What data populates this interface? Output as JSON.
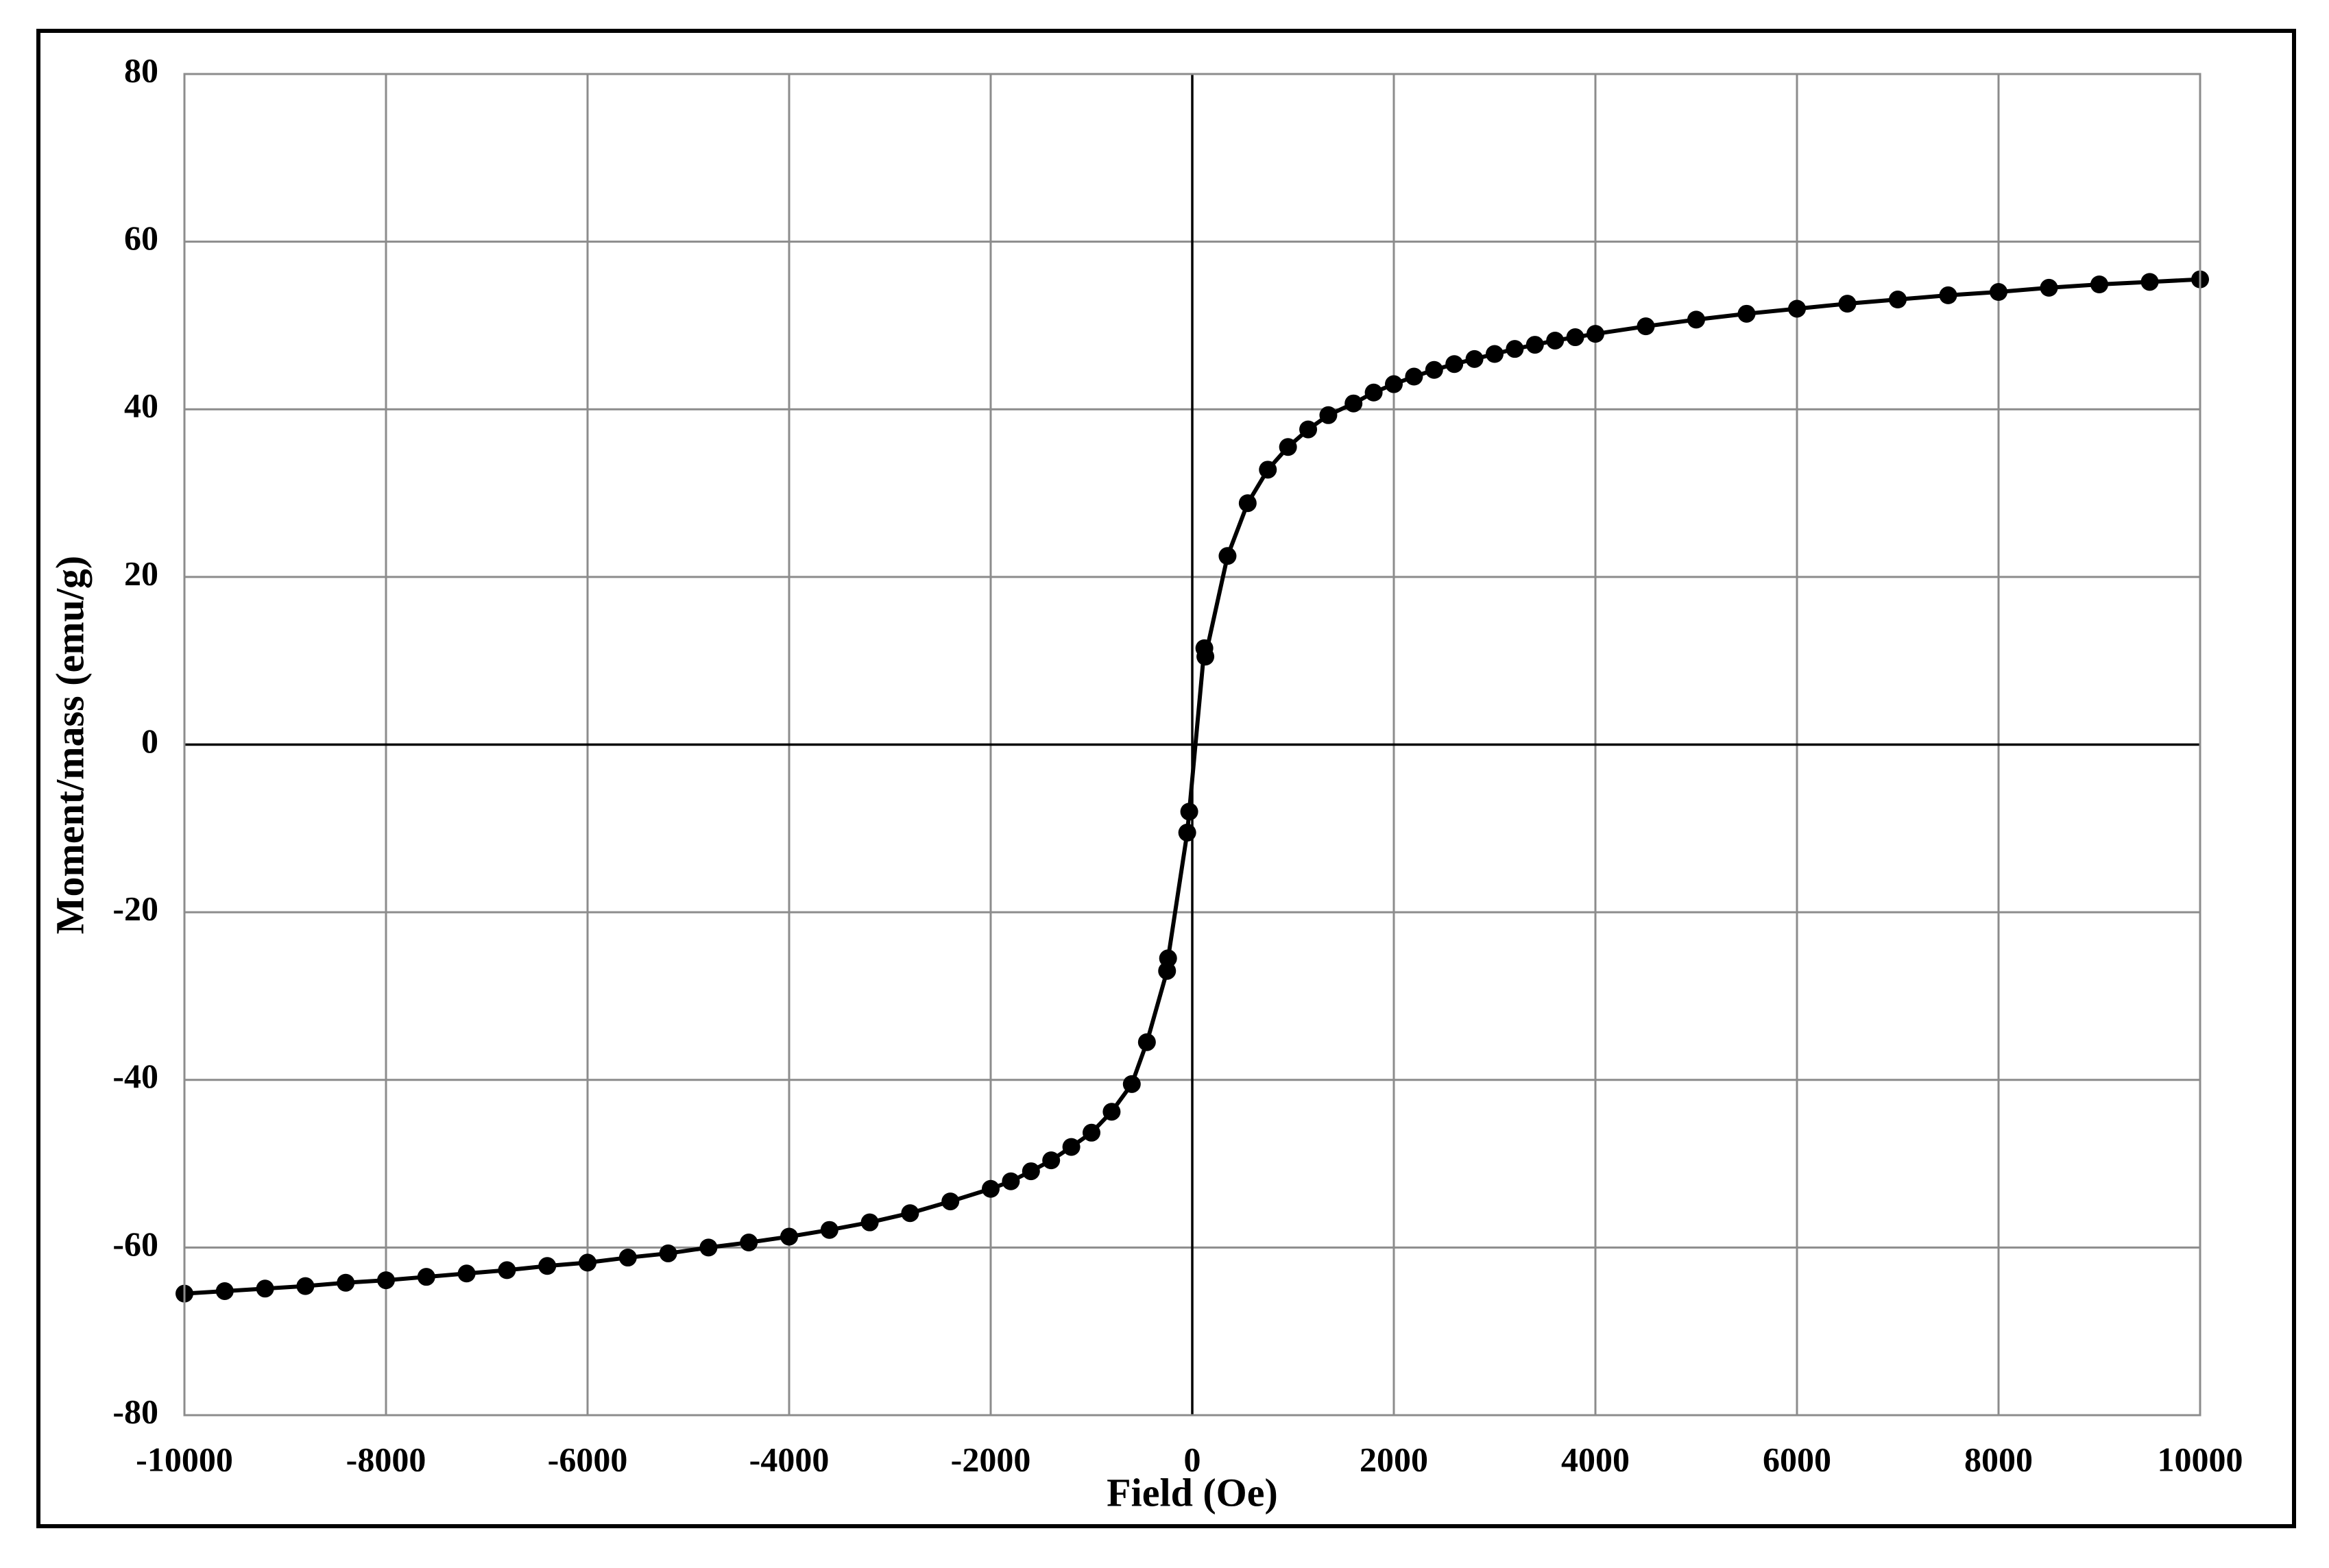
{
  "chart_data": {
    "type": "scatter",
    "x_label": "Field (Oe)",
    "y_label": "Moment/mass (emu/g)",
    "xlim": [
      -10000,
      10000
    ],
    "xticks": [
      -10000,
      -8000,
      -6000,
      -4000,
      -2000,
      0,
      2000,
      4000,
      6000,
      8000,
      10000
    ],
    "ylim": [
      -80,
      80
    ],
    "yticks": [
      -80,
      -60,
      -40,
      -20,
      0,
      20,
      40,
      60,
      80
    ],
    "grid": true,
    "series": [
      {
        "color": "#000000",
        "x": [
          -10000,
          -9600,
          -9200,
          -8800,
          -8400,
          -8000,
          -7600,
          -7200,
          -6800,
          -6400,
          -6000,
          -5600,
          -5200,
          -4800,
          -4400,
          -4000,
          -3600,
          -3200,
          -2800,
          -2400,
          -2000,
          -1800,
          -1600,
          -1400,
          -1200,
          -1000,
          -800,
          -600,
          -450,
          -250,
          -240,
          -50,
          -30,
          120,
          130,
          350,
          550,
          750,
          950,
          1150,
          1350,
          1600,
          1800,
          2000,
          2200,
          2400,
          2600,
          2800,
          3000,
          3200,
          3400,
          3600,
          3800,
          4000,
          4500,
          5000,
          5500,
          6000,
          6500,
          7000,
          7500,
          8000,
          8500,
          9000,
          9500,
          10000
        ],
        "values": [
          -65.5,
          -65.2,
          -64.9,
          -64.6,
          -64.2,
          -63.9,
          -63.5,
          -63.1,
          -62.7,
          -62.2,
          -61.8,
          -61.2,
          -60.7,
          -60,
          -59.4,
          -58.7,
          -57.9,
          -57,
          -55.9,
          -54.5,
          -53,
          -52.1,
          -50.9,
          -49.6,
          -48,
          -46.3,
          -43.8,
          -40.5,
          -35.5,
          -27,
          -25.5,
          -10.5,
          -8,
          11.5,
          10.5,
          22.5,
          28.8,
          32.8,
          35.5,
          37.6,
          39.3,
          40.7,
          42,
          43,
          43.9,
          44.7,
          45.4,
          46,
          46.6,
          47.2,
          47.7,
          48.2,
          48.6,
          49,
          49.9,
          50.7,
          51.4,
          52,
          52.6,
          53.1,
          53.6,
          54,
          54.5,
          54.9,
          55.2,
          55.5
        ]
      }
    ]
  }
}
